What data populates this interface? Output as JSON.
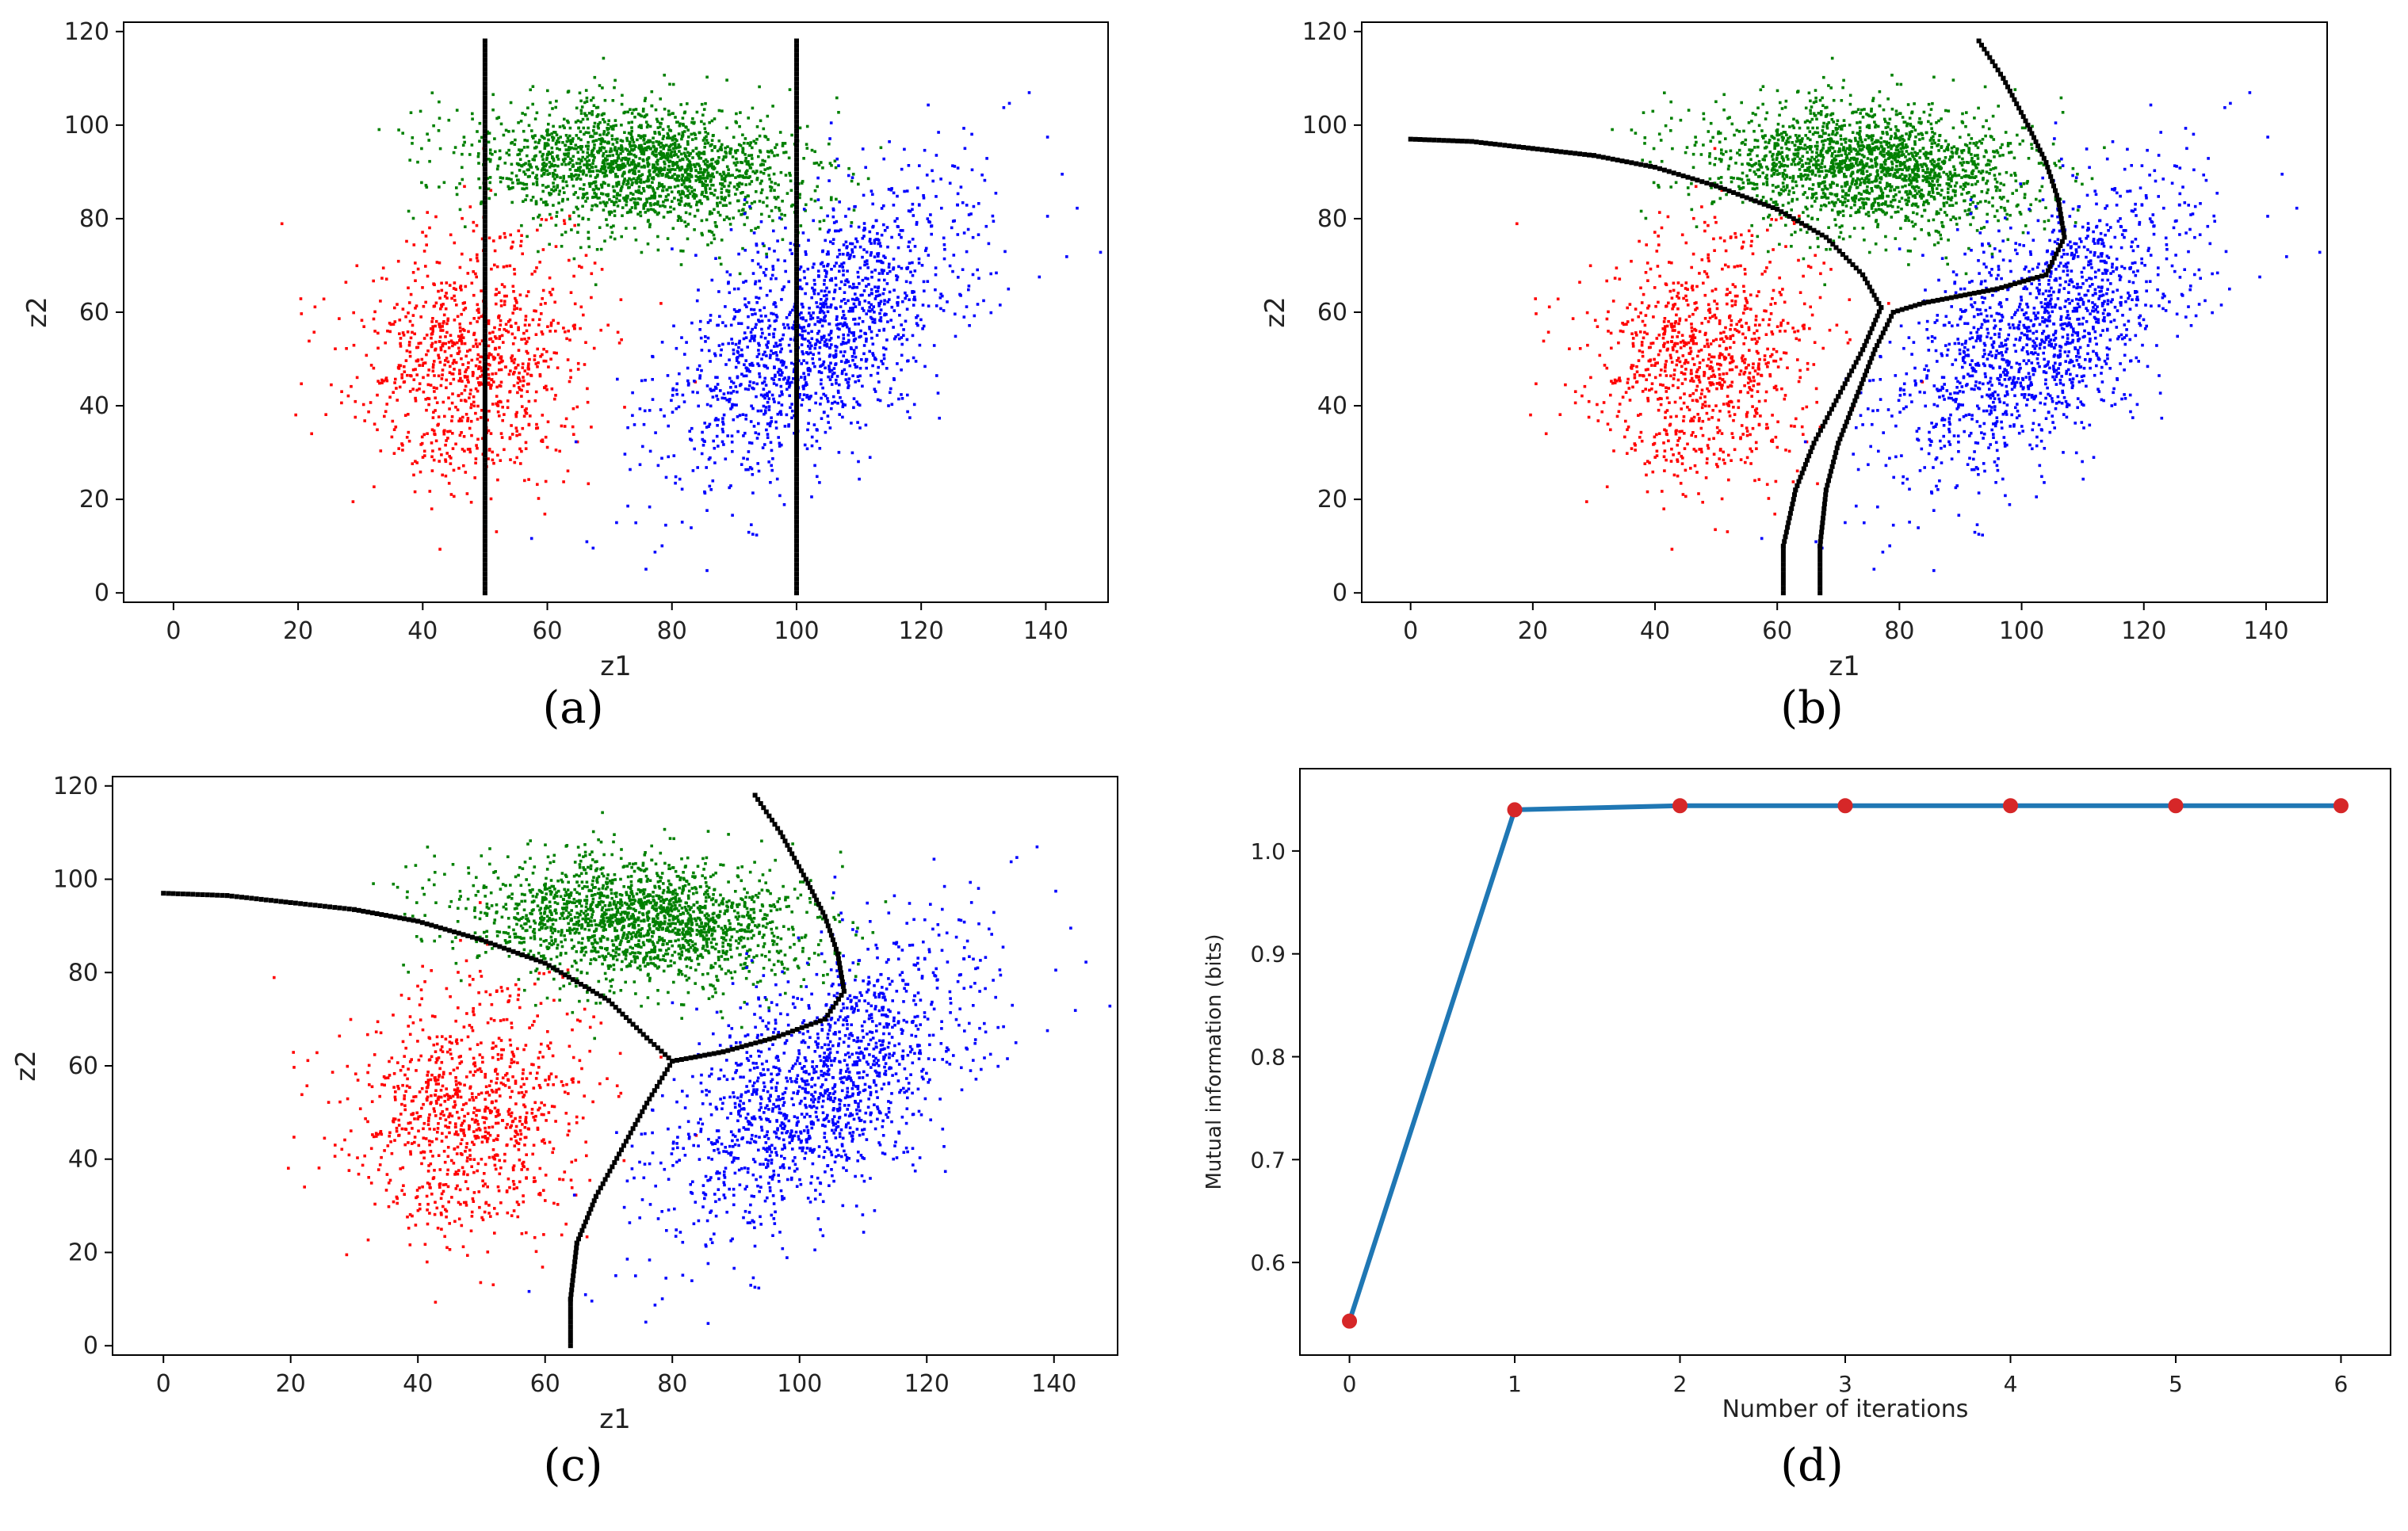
{
  "panels": [
    {
      "caption": "(a)",
      "type": "scatter",
      "xlabel": "z1",
      "ylabel": "z2",
      "xlim": [
        -8,
        150
      ],
      "ylim": [
        -2,
        122
      ],
      "xticks": [
        0,
        20,
        40,
        60,
        80,
        100,
        120,
        140
      ],
      "yticks": [
        0,
        20,
        40,
        60,
        80,
        100,
        120
      ],
      "clusters": [
        {
          "color": "#ff0000",
          "center": [
            48,
            50
          ],
          "spread": [
            9.0,
            13.5
          ],
          "corr": 0.1,
          "count": 950
        },
        {
          "color": "#008000",
          "center": [
            75,
            91
          ],
          "spread": [
            12.5,
            6.5
          ],
          "corr": -0.15,
          "count": 1900
        },
        {
          "color": "#0000ff",
          "center": [
            103,
            55
          ],
          "spread": [
            12.5,
            16.0
          ],
          "corr": 0.6,
          "count": 1500
        }
      ],
      "boundaries": [
        [
          [
            50,
            0
          ],
          [
            50,
            118
          ]
        ],
        [
          [
            100,
            0
          ],
          [
            100,
            118
          ]
        ]
      ]
    },
    {
      "caption": "(b)",
      "type": "scatter",
      "xlabel": "z1",
      "ylabel": "z2",
      "xlim": [
        -8,
        150
      ],
      "ylim": [
        -2,
        122
      ],
      "xticks": [
        0,
        20,
        40,
        60,
        80,
        100,
        120,
        140
      ],
      "yticks": [
        0,
        20,
        40,
        60,
        80,
        100,
        120
      ],
      "clusters": [
        {
          "color": "#ff0000",
          "center": [
            48,
            50
          ],
          "spread": [
            9.0,
            13.5
          ],
          "corr": 0.1,
          "count": 950
        },
        {
          "color": "#008000",
          "center": [
            75,
            91
          ],
          "spread": [
            12.5,
            6.5
          ],
          "corr": -0.15,
          "count": 1900
        },
        {
          "color": "#0000ff",
          "center": [
            103,
            55
          ],
          "spread": [
            12.5,
            16.0
          ],
          "corr": 0.6,
          "count": 1500
        }
      ],
      "boundaries": [
        [
          [
            0,
            97
          ],
          [
            10,
            96.5
          ],
          [
            20,
            95
          ],
          [
            30,
            93.5
          ],
          [
            40,
            91
          ],
          [
            50,
            87
          ],
          [
            60,
            82
          ],
          [
            68,
            76
          ],
          [
            74,
            68
          ],
          [
            77,
            61
          ],
          [
            74,
            52
          ],
          [
            70,
            42
          ],
          [
            66,
            32
          ],
          [
            63,
            22
          ],
          [
            61,
            10
          ],
          [
            61,
            0
          ]
        ],
        [
          [
            93,
            118
          ],
          [
            97,
            110
          ],
          [
            101,
            100
          ],
          [
            104,
            92
          ],
          [
            106,
            84
          ],
          [
            107,
            76
          ],
          [
            104,
            68
          ],
          [
            96,
            65
          ],
          [
            84,
            62
          ],
          [
            79,
            60
          ],
          [
            76,
            52
          ],
          [
            73,
            42
          ],
          [
            70,
            32
          ],
          [
            68,
            22
          ],
          [
            67,
            10
          ],
          [
            67,
            0
          ]
        ]
      ]
    },
    {
      "caption": "(c)",
      "type": "scatter",
      "xlabel": "z1",
      "ylabel": "z2",
      "xlim": [
        -8,
        150
      ],
      "ylim": [
        -2,
        122
      ],
      "xticks": [
        0,
        20,
        40,
        60,
        80,
        100,
        120,
        140
      ],
      "yticks": [
        0,
        20,
        40,
        60,
        80,
        100,
        120
      ],
      "clusters": [
        {
          "color": "#ff0000",
          "center": [
            48,
            50
          ],
          "spread": [
            9.0,
            13.5
          ],
          "corr": 0.1,
          "count": 950
        },
        {
          "color": "#008000",
          "center": [
            75,
            91
          ],
          "spread": [
            12.5,
            6.5
          ],
          "corr": -0.15,
          "count": 1900
        },
        {
          "color": "#0000ff",
          "center": [
            103,
            55
          ],
          "spread": [
            12.5,
            16.0
          ],
          "corr": 0.6,
          "count": 1500
        }
      ],
      "boundaries": [
        [
          [
            0,
            97
          ],
          [
            10,
            96.5
          ],
          [
            20,
            95
          ],
          [
            30,
            93.5
          ],
          [
            40,
            91
          ],
          [
            50,
            87
          ],
          [
            60,
            82
          ],
          [
            70,
            74
          ],
          [
            76,
            66
          ],
          [
            80,
            61
          ]
        ],
        [
          [
            93,
            118
          ],
          [
            97,
            110
          ],
          [
            101,
            100
          ],
          [
            104,
            92
          ],
          [
            106,
            84
          ],
          [
            107,
            76
          ],
          [
            104,
            70
          ],
          [
            96,
            66
          ],
          [
            88,
            63
          ],
          [
            80,
            61
          ]
        ],
        [
          [
            80,
            61
          ],
          [
            76,
            52
          ],
          [
            72,
            42
          ],
          [
            68,
            32
          ],
          [
            65,
            22
          ],
          [
            64,
            10
          ],
          [
            64,
            0
          ]
        ]
      ]
    },
    {
      "caption": "(d)",
      "type": "line",
      "xlabel": "Number of iterations",
      "ylabel": "Mutual information (bits)",
      "xlim": [
        -0.3,
        6.3
      ],
      "ylim": [
        0.51,
        1.08
      ],
      "xticks": [
        0,
        1,
        2,
        3,
        4,
        5,
        6
      ],
      "yticks": [
        0.6,
        0.7,
        0.8,
        0.9,
        1.0
      ],
      "ytick_labels": [
        "0.6",
        "0.7",
        "0.8",
        "0.9",
        "1.0"
      ],
      "x": [
        0,
        1,
        2,
        3,
        4,
        5,
        6
      ],
      "y": [
        0.543,
        1.04,
        1.044,
        1.044,
        1.044,
        1.044,
        1.044
      ],
      "line_color": "#1f77b4",
      "marker_color": "#d62728"
    }
  ]
}
